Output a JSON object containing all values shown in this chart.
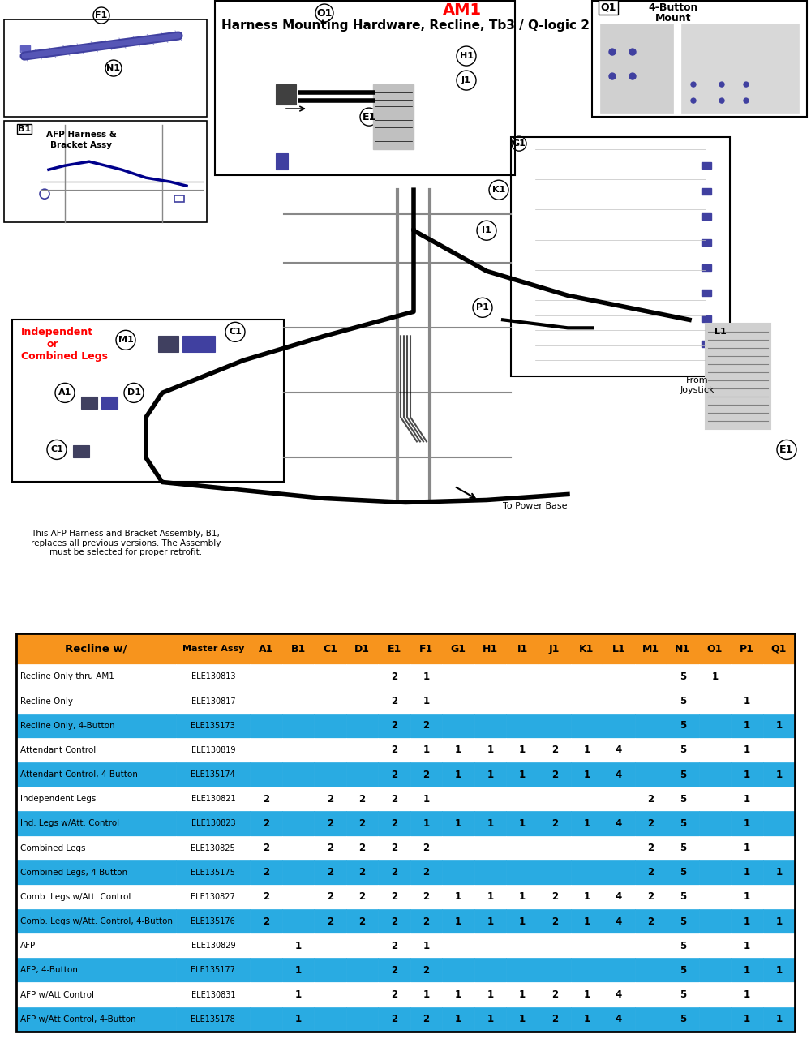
{
  "title": "Harness Mounting Hardware, Recline, Tb3 / Q-logic 2",
  "diagram_note": "This AFP Harness and Bracket Assembly, B1,\nreplaces all previous versions. The Assembly\nmust be selected for proper retrofit.",
  "header_bg": "#F7941D",
  "header_text": "#000000",
  "row_bg_cyan": "#29ABE2",
  "row_bg_white": "#FFFFFF",
  "col_headers": [
    "Recline w/",
    "Master Assy",
    "A1",
    "B1",
    "C1",
    "D1",
    "E1",
    "F1",
    "G1",
    "H1",
    "I1",
    "J1",
    "K1",
    "L1",
    "M1",
    "N1",
    "O1",
    "P1",
    "Q1"
  ],
  "rows": [
    {
      "name": "Recline Only thru AM1",
      "assy": "ELE130813",
      "A1": "",
      "B1": "",
      "C1": "",
      "D1": "",
      "E1": "2",
      "F1": "1",
      "G1": "",
      "H1": "",
      "I1": "",
      "J1": "",
      "K1": "",
      "L1": "",
      "M1": "",
      "N1": "5",
      "O1": "1",
      "P1": "",
      "Q1": "",
      "cyan": false
    },
    {
      "name": "Recline Only",
      "assy": "ELE130817",
      "A1": "",
      "B1": "",
      "C1": "",
      "D1": "",
      "E1": "2",
      "F1": "1",
      "G1": "",
      "H1": "",
      "I1": "",
      "J1": "",
      "K1": "",
      "L1": "",
      "M1": "",
      "N1": "5",
      "O1": "",
      "P1": "1",
      "Q1": "",
      "cyan": false
    },
    {
      "name": "Recline Only, 4-Button",
      "assy": "ELE135173",
      "A1": "",
      "B1": "",
      "C1": "",
      "D1": "",
      "E1": "2",
      "F1": "2",
      "G1": "",
      "H1": "",
      "I1": "",
      "J1": "",
      "K1": "",
      "L1": "",
      "M1": "",
      "N1": "5",
      "O1": "",
      "P1": "1",
      "Q1": "1",
      "cyan": true
    },
    {
      "name": "Attendant Control",
      "assy": "ELE130819",
      "A1": "",
      "B1": "",
      "C1": "",
      "D1": "",
      "E1": "2",
      "F1": "1",
      "G1": "1",
      "H1": "1",
      "I1": "1",
      "J1": "2",
      "K1": "1",
      "L1": "4",
      "M1": "",
      "N1": "5",
      "O1": "",
      "P1": "1",
      "Q1": "",
      "cyan": false
    },
    {
      "name": "Attendant Control, 4-Button",
      "assy": "ELE135174",
      "A1": "",
      "B1": "",
      "C1": "",
      "D1": "",
      "E1": "2",
      "F1": "2",
      "G1": "1",
      "H1": "1",
      "I1": "1",
      "J1": "2",
      "K1": "1",
      "L1": "4",
      "M1": "",
      "N1": "5",
      "O1": "",
      "P1": "1",
      "Q1": "1",
      "cyan": true
    },
    {
      "name": "Independent Legs",
      "assy": "ELE130821",
      "A1": "2",
      "B1": "",
      "C1": "2",
      "D1": "2",
      "E1": "2",
      "F1": "1",
      "G1": "",
      "H1": "",
      "I1": "",
      "J1": "",
      "K1": "",
      "L1": "",
      "M1": "2",
      "N1": "5",
      "O1": "",
      "P1": "1",
      "Q1": "",
      "cyan": false
    },
    {
      "name": "Ind. Legs w/Att. Control",
      "assy": "ELE130823",
      "A1": "2",
      "B1": "",
      "C1": "2",
      "D1": "2",
      "E1": "2",
      "F1": "1",
      "G1": "1",
      "H1": "1",
      "I1": "1",
      "J1": "2",
      "K1": "1",
      "L1": "4",
      "M1": "2",
      "N1": "5",
      "O1": "",
      "P1": "1",
      "Q1": "",
      "cyan": true
    },
    {
      "name": "Combined Legs",
      "assy": "ELE130825",
      "A1": "2",
      "B1": "",
      "C1": "2",
      "D1": "2",
      "E1": "2",
      "F1": "2",
      "G1": "",
      "H1": "",
      "I1": "",
      "J1": "",
      "K1": "",
      "L1": "",
      "M1": "2",
      "N1": "5",
      "O1": "",
      "P1": "1",
      "Q1": "",
      "cyan": false
    },
    {
      "name": "Combined Legs, 4-Button",
      "assy": "ELE135175",
      "A1": "2",
      "B1": "",
      "C1": "2",
      "D1": "2",
      "E1": "2",
      "F1": "2",
      "G1": "",
      "H1": "",
      "I1": "",
      "J1": "",
      "K1": "",
      "L1": "",
      "M1": "2",
      "N1": "5",
      "O1": "",
      "P1": "1",
      "Q1": "1",
      "cyan": true
    },
    {
      "name": "Comb. Legs w/Att. Control",
      "assy": "ELE130827",
      "A1": "2",
      "B1": "",
      "C1": "2",
      "D1": "2",
      "E1": "2",
      "F1": "2",
      "G1": "1",
      "H1": "1",
      "I1": "1",
      "J1": "2",
      "K1": "1",
      "L1": "4",
      "M1": "2",
      "N1": "5",
      "O1": "",
      "P1": "1",
      "Q1": "",
      "cyan": false
    },
    {
      "name": "Comb. Legs w/Att. Control, 4-Button",
      "assy": "ELE135176",
      "A1": "2",
      "B1": "",
      "C1": "2",
      "D1": "2",
      "E1": "2",
      "F1": "2",
      "G1": "1",
      "H1": "1",
      "I1": "1",
      "J1": "2",
      "K1": "1",
      "L1": "4",
      "M1": "2",
      "N1": "5",
      "O1": "",
      "P1": "1",
      "Q1": "1",
      "cyan": true
    },
    {
      "name": "AFP",
      "assy": "ELE130829",
      "A1": "",
      "B1": "1",
      "C1": "",
      "D1": "",
      "E1": "2",
      "F1": "1",
      "G1": "",
      "H1": "",
      "I1": "",
      "J1": "",
      "K1": "",
      "L1": "",
      "M1": "",
      "N1": "5",
      "O1": "",
      "P1": "1",
      "Q1": "",
      "cyan": false
    },
    {
      "name": "AFP, 4-Button",
      "assy": "ELE135177",
      "A1": "",
      "B1": "1",
      "C1": "",
      "D1": "",
      "E1": "2",
      "F1": "2",
      "G1": "",
      "H1": "",
      "I1": "",
      "J1": "",
      "K1": "",
      "L1": "",
      "M1": "",
      "N1": "5",
      "O1": "",
      "P1": "1",
      "Q1": "1",
      "cyan": true
    },
    {
      "name": "AFP w/Att Control",
      "assy": "ELE130831",
      "A1": "",
      "B1": "1",
      "C1": "",
      "D1": "",
      "E1": "2",
      "F1": "1",
      "G1": "1",
      "H1": "1",
      "I1": "1",
      "J1": "2",
      "K1": "1",
      "L1": "4",
      "M1": "",
      "N1": "5",
      "O1": "",
      "P1": "1",
      "Q1": "",
      "cyan": false
    },
    {
      "name": "AFP w/Att Control, 4-Button",
      "assy": "ELE135178",
      "A1": "",
      "B1": "1",
      "C1": "",
      "D1": "",
      "E1": "2",
      "F1": "2",
      "G1": "1",
      "H1": "1",
      "I1": "1",
      "J1": "2",
      "K1": "1",
      "L1": "4",
      "M1": "",
      "N1": "5",
      "O1": "",
      "P1": "1",
      "Q1": "1",
      "cyan": true
    }
  ]
}
